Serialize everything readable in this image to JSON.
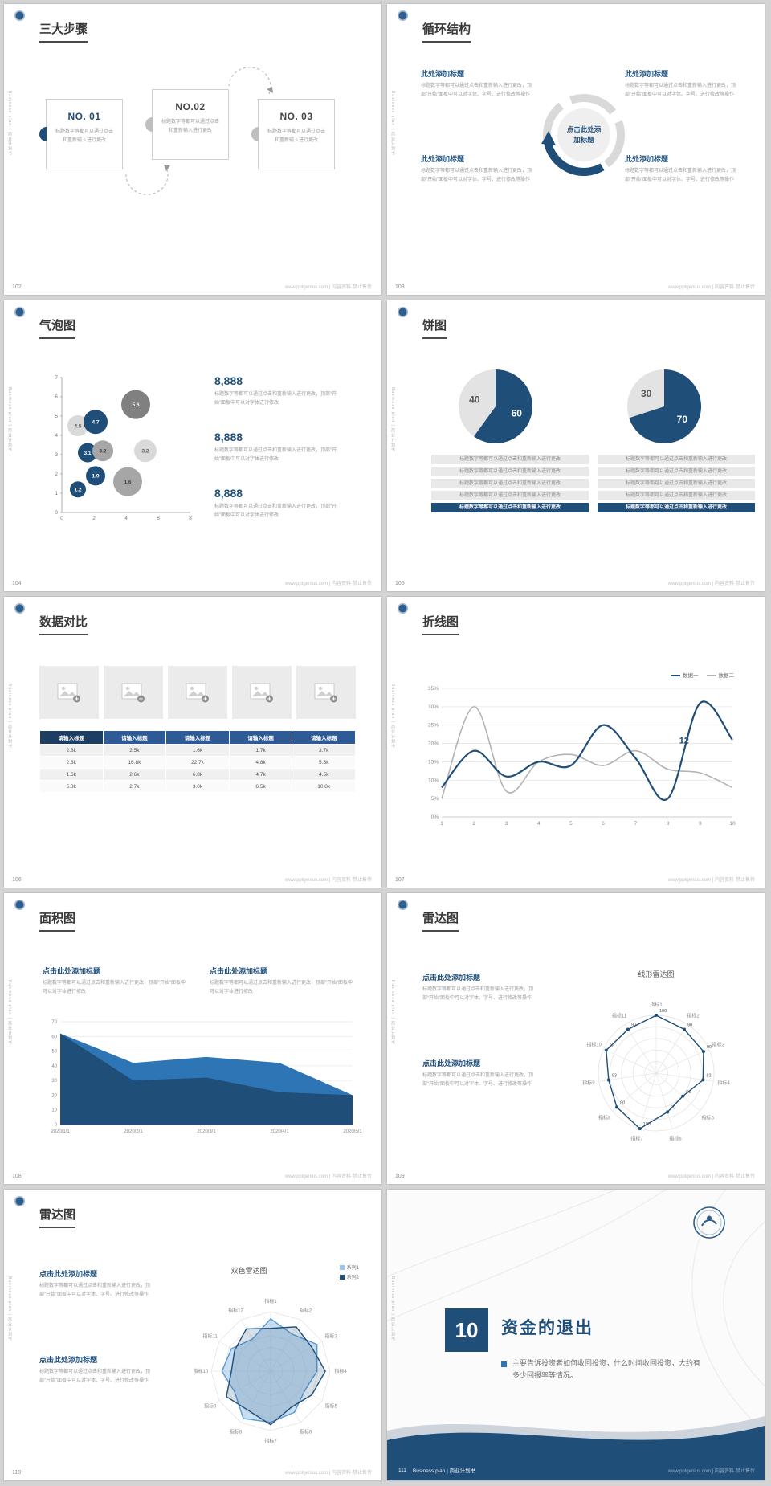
{
  "colors": {
    "navy": "#1f4e79",
    "blue": "#2e75b6",
    "light_blue": "#9dc3e6",
    "gray_mid": "#a6a6a6",
    "gray_light": "#d9d9d9",
    "table_header": "#2e5b97",
    "table_header_first": "#1c3e63"
  },
  "common": {
    "brand_vertical": "Business plan | 商业计划书",
    "watermark": "www.pptgenius.com | 内容资料·禁止售传",
    "click_title": "点击此处添加标题",
    "add_title": "此处添加标题",
    "ph_short": "标题数字等都可以通过点击和重新输入进行更改",
    "ph_mid": "标题数字等都可以通过点击和重新输入进行更改，顶部“开始”面板中可以对字体进行修改",
    "ph_long": "标题数字等都可以通过点击和重新输入进行更改，顶部“开始”面板中可以对字体、字号、进行修改等操作"
  },
  "slides": {
    "s102": {
      "page": "102",
      "title": "三大步骤",
      "steps": [
        {
          "no": "NO. 01"
        },
        {
          "no": "NO.02"
        },
        {
          "no": "NO. 03"
        }
      ]
    },
    "s103": {
      "page": "103",
      "title": "循环结构",
      "center": "点击此处添加标题"
    },
    "s104": {
      "page": "104",
      "title": "气泡图",
      "stats": [
        {
          "value": "8,888"
        },
        {
          "value": "8,888"
        },
        {
          "value": "8,888"
        }
      ],
      "chart_data": {
        "type": "scatter",
        "xlim": [
          0,
          8
        ],
        "ylim": [
          0,
          7
        ],
        "x_ticks": [
          0,
          2,
          4,
          6,
          8
        ],
        "y_ticks": [
          0,
          1,
          2,
          3,
          4,
          5,
          6,
          7
        ],
        "bubbles": [
          {
            "x": 1.0,
            "y": 4.5,
            "label": "4.5",
            "color": "#d9d9d9",
            "text": "#595959",
            "r": 13
          },
          {
            "x": 2.1,
            "y": 4.7,
            "label": "4.7",
            "color": "#1f4e79",
            "text": "#ffffff",
            "r": 15
          },
          {
            "x": 4.6,
            "y": 5.6,
            "label": "5.6",
            "color": "#808080",
            "text": "#ffffff",
            "r": 18
          },
          {
            "x": 1.6,
            "y": 3.1,
            "label": "3.1",
            "color": "#1f4e79",
            "text": "#ffffff",
            "r": 12
          },
          {
            "x": 2.55,
            "y": 3.2,
            "label": "3.2",
            "color": "#a6a6a6",
            "text": "#404040",
            "r": 13
          },
          {
            "x": 5.2,
            "y": 3.2,
            "label": "3.2",
            "color": "#d9d9d9",
            "text": "#595959",
            "r": 14
          },
          {
            "x": 2.1,
            "y": 1.9,
            "label": "1.9",
            "color": "#1f4e79",
            "text": "#ffffff",
            "r": 12
          },
          {
            "x": 1.0,
            "y": 1.2,
            "label": "1.2",
            "color": "#1f4e79",
            "text": "#ffffff",
            "r": 10
          },
          {
            "x": 4.1,
            "y": 1.6,
            "label": "1.6",
            "color": "#a6a6a6",
            "text": "#404040",
            "r": 18
          }
        ]
      }
    },
    "s105": {
      "page": "105",
      "title": "饼图",
      "chart_data": [
        {
          "type": "pie",
          "values": [
            60,
            40
          ],
          "labels": [
            "60",
            "40"
          ],
          "colors": [
            "#1f4e79",
            "#e3e3e3"
          ]
        },
        {
          "type": "pie",
          "values": [
            70,
            30
          ],
          "labels": [
            "70",
            "30"
          ],
          "colors": [
            "#1f4e79",
            "#e3e3e3"
          ]
        }
      ]
    },
    "s106": {
      "page": "106",
      "title": "数据对比",
      "table": {
        "headers": [
          "请输入标题",
          "请输入标题",
          "请输入标题",
          "请输入标题",
          "请输入标题"
        ],
        "rows": [
          [
            "2.8k",
            "2.5k",
            "1.6k",
            "1.7k",
            "3.7k"
          ],
          [
            "2.8k",
            "16.8k",
            "22.7k",
            "4.8k",
            "5.8k"
          ],
          [
            "1.6k",
            "2.6k",
            "6.8k",
            "4.7k",
            "4.5k"
          ],
          [
            "5.8k",
            "2.7k",
            "3.0k",
            "6.5k",
            "10.8k"
          ]
        ]
      }
    },
    "s107": {
      "page": "107",
      "title": "折线图",
      "chart_data": {
        "type": "line",
        "x": [
          1,
          2,
          3,
          4,
          5,
          6,
          7,
          8,
          9,
          10
        ],
        "ylim": [
          0,
          35
        ],
        "y_ticks_percent": [
          "0%",
          "5%",
          "10%",
          "15%",
          "20%",
          "25%",
          "30%",
          "35%"
        ],
        "series": [
          {
            "name": "数据一",
            "color": "#1f4e79",
            "values": [
              8,
              18,
              11,
              15,
              14,
              25,
              16,
              5,
              31,
              21
            ]
          },
          {
            "name": "数据二",
            "color": "#b3b3b3",
            "values": [
              5,
              30,
              7,
              15,
              17,
              14,
              18,
              13,
              12,
              8
            ]
          }
        ],
        "annotation": {
          "text": "12",
          "x": 8.35,
          "y": 20
        }
      }
    },
    "s108": {
      "page": "108",
      "title": "面积图",
      "chart_data": {
        "type": "area",
        "x_labels": [
          "2020/1/1",
          "2020/2/1",
          "2020/3/1",
          "2020/4/1",
          "2020/5/1"
        ],
        "ylim": [
          0,
          70
        ],
        "y_ticks": [
          0,
          10,
          20,
          30,
          40,
          50,
          60,
          70
        ],
        "series": [
          {
            "color": "#2e75b6",
            "values": [
              62,
              42,
              46,
              42,
              20
            ]
          },
          {
            "color": "#1f4e79",
            "values": [
              62,
              30,
              32,
              22,
              20
            ]
          }
        ]
      }
    },
    "s109": {
      "page": "109",
      "title": "雷达图",
      "chart_data": {
        "type": "radar",
        "title": "线形雷达图",
        "axes": [
          "指标1",
          "指标2",
          "指标3",
          "指标4",
          "指标5",
          "指标6",
          "指标7",
          "指标8",
          "指标9",
          "指标10",
          "指标11"
        ],
        "max": 100,
        "show_values": true,
        "series": [
          {
            "name": "数据",
            "stroke": "#1f4e79",
            "values": [
              100,
              90,
              90,
              82,
              61,
              70,
              100,
              90,
              83,
              95,
              90
            ]
          }
        ]
      }
    },
    "s110": {
      "page": "110",
      "title": "雷达图",
      "chart_data": {
        "type": "radar",
        "title": "双色雷达图",
        "axes": [
          "指标1",
          "指标2",
          "指标3",
          "指标4",
          "指标5",
          "指标6",
          "指标7",
          "指标8",
          "指标9",
          "指标10",
          "指标11",
          "指标12"
        ],
        "max": 100,
        "show_values": false,
        "series": [
          {
            "name": "系列1",
            "stroke": "#5b9bd5",
            "fill": "rgba(157,195,230,0.55)",
            "swatch": "#9dc3e6",
            "values": [
              88,
              72,
              90,
              78,
              66,
              80,
              86,
              92,
              70,
              82,
              76,
              62
            ]
          },
          {
            "name": "系列2",
            "stroke": "#1f4e79",
            "fill": "rgba(31,78,121,0.18)",
            "swatch": "#1f4e79",
            "values": [
              72,
              86,
              80,
              92,
              80,
              70,
              90,
              76,
              86,
              66,
              70,
              82
            ]
          }
        ]
      }
    },
    "s111": {
      "page": "111",
      "number": "10",
      "title": "资金的退出",
      "body": "主要告诉投资者如何收回投资，什么时间收回投资，大约有多少回报率等情况。",
      "footer": "Business plan | 商业计划书"
    }
  }
}
